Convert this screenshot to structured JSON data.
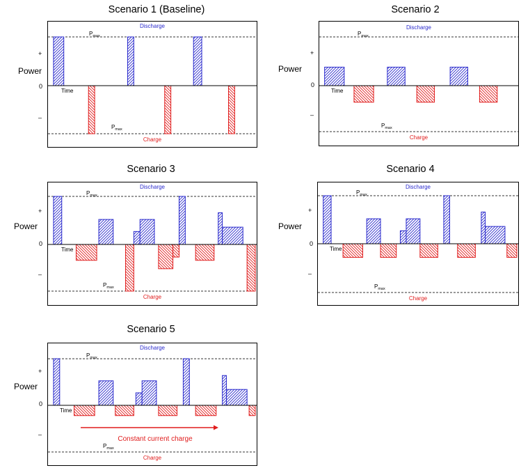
{
  "panels": [
    {
      "title": "Scenario 1 (Baseline)",
      "ylabel": "Power",
      "plus": "+",
      "zero": "0",
      "minus": "–",
      "time_label": "Time",
      "discharge_label": "Discharge",
      "charge_label": "Charge",
      "pmax_top": {
        "p": "P",
        "sub": "max"
      },
      "pmax_bottom": {
        "p": "P",
        "sub": "max"
      },
      "discharge_level": 1.0,
      "charge_level": 1.0,
      "discharge_pulses": [
        {
          "t0": 0.02,
          "t1": 0.07,
          "p": 1.0
        },
        {
          "t0": 0.38,
          "t1": 0.41,
          "p": 1.0
        },
        {
          "t0": 0.7,
          "t1": 0.74,
          "p": 1.0
        }
      ],
      "charge_pulses": [
        {
          "t0": 0.19,
          "t1": 0.22,
          "p": 1.0
        },
        {
          "t0": 0.56,
          "t1": 0.59,
          "p": 1.0
        },
        {
          "t0": 0.87,
          "t1": 0.9,
          "p": 1.0
        }
      ]
    },
    {
      "title": "Scenario 2",
      "ylabel": "Power",
      "plus": "+",
      "zero": "0",
      "minus": "–",
      "time_label": "Time",
      "discharge_label": "Discharge",
      "charge_label": "Charge",
      "pmax_top": {
        "p": "P",
        "sub": "max"
      },
      "pmax_bottom": {
        "p": "P",
        "sub": "max"
      },
      "discharge_level": 1.0,
      "charge_level": 1.0,
      "discharge_pulses": [
        {
          "t0": 0.02,
          "t1": 0.12,
          "p": 0.38
        },
        {
          "t0": 0.34,
          "t1": 0.43,
          "p": 0.38
        },
        {
          "t0": 0.66,
          "t1": 0.75,
          "p": 0.38
        }
      ],
      "charge_pulses": [
        {
          "t0": 0.17,
          "t1": 0.27,
          "p": 0.36
        },
        {
          "t0": 0.49,
          "t1": 0.58,
          "p": 0.36
        },
        {
          "t0": 0.81,
          "t1": 0.9,
          "p": 0.36
        }
      ]
    },
    {
      "title": "Scenario 3",
      "ylabel": "Power",
      "plus": "+",
      "zero": "0",
      "minus": "–",
      "time_label": "Time",
      "discharge_label": "Discharge",
      "charge_label": "Charge",
      "pmax_top": {
        "p": "P",
        "sub": "max"
      },
      "pmax_bottom": {
        "p": "P",
        "sub": "max"
      },
      "discharge_level": 1.0,
      "charge_level": 1.0,
      "discharge_pulses": [
        {
          "t0": 0.02,
          "t1": 0.06,
          "p": 1.0
        },
        {
          "t0": 0.24,
          "t1": 0.31,
          "p": 0.52
        },
        {
          "t0": 0.41,
          "t1": 0.44,
          "p": 0.27
        },
        {
          "t0": 0.44,
          "t1": 0.51,
          "p": 0.52
        },
        {
          "t0": 0.63,
          "t1": 0.66,
          "p": 1.0
        },
        {
          "t0": 0.82,
          "t1": 0.84,
          "p": 0.66
        },
        {
          "t0": 0.84,
          "t1": 0.94,
          "p": 0.36
        }
      ],
      "charge_pulses": [
        {
          "t0": 0.13,
          "t1": 0.23,
          "p": 0.34
        },
        {
          "t0": 0.37,
          "t1": 0.41,
          "p": 1.0
        },
        {
          "t0": 0.53,
          "t1": 0.6,
          "p": 0.52
        },
        {
          "t0": 0.6,
          "t1": 0.63,
          "p": 0.27
        },
        {
          "t0": 0.71,
          "t1": 0.8,
          "p": 0.34
        },
        {
          "t0": 0.96,
          "t1": 1.0,
          "p": 1.0
        }
      ]
    },
    {
      "title": "Scenario 4",
      "ylabel": "Power",
      "plus": "+",
      "zero": "0",
      "minus": "–",
      "time_label": "Time",
      "discharge_label": "Discharge",
      "charge_label": "Charge",
      "pmax_top": {
        "p": "P",
        "sub": "max"
      },
      "pmax_bottom": {
        "p": "P",
        "sub": "max"
      },
      "discharge_level": 1.0,
      "charge_level": 1.0,
      "discharge_pulses": [
        {
          "t0": 0.02,
          "t1": 0.06,
          "p": 1.0
        },
        {
          "t0": 0.24,
          "t1": 0.31,
          "p": 0.52
        },
        {
          "t0": 0.41,
          "t1": 0.44,
          "p": 0.27
        },
        {
          "t0": 0.44,
          "t1": 0.51,
          "p": 0.52
        },
        {
          "t0": 0.63,
          "t1": 0.66,
          "p": 1.0
        },
        {
          "t0": 0.82,
          "t1": 0.84,
          "p": 0.66
        },
        {
          "t0": 0.84,
          "t1": 0.94,
          "p": 0.36
        }
      ],
      "charge_pulses": [
        {
          "t0": 0.12,
          "t1": 0.22,
          "p": 0.28
        },
        {
          "t0": 0.31,
          "t1": 0.39,
          "p": 0.28
        },
        {
          "t0": 0.51,
          "t1": 0.6,
          "p": 0.28
        },
        {
          "t0": 0.7,
          "t1": 0.79,
          "p": 0.28
        },
        {
          "t0": 0.95,
          "t1": 1.0,
          "p": 0.28
        }
      ]
    },
    {
      "title": "Scenario 5",
      "ylabel": "Power",
      "plus": "+",
      "zero": "0",
      "minus": "–",
      "time_label": "Time",
      "discharge_label": "Discharge",
      "charge_label": "Charge",
      "pmax_top": {
        "p": "P",
        "sub": "max"
      },
      "pmax_bottom": {
        "p": "P",
        "sub": "max"
      },
      "arrow_label": "Constant current charge",
      "discharge_level": 0.97,
      "charge_level": 1.0,
      "discharge_pulses": [
        {
          "t0": 0.02,
          "t1": 0.05,
          "p": 0.97
        },
        {
          "t0": 0.24,
          "t1": 0.31,
          "p": 0.51
        },
        {
          "t0": 0.42,
          "t1": 0.45,
          "p": 0.26
        },
        {
          "t0": 0.45,
          "t1": 0.52,
          "p": 0.51
        },
        {
          "t0": 0.65,
          "t1": 0.68,
          "p": 0.97
        },
        {
          "t0": 0.84,
          "t1": 0.86,
          "p": 0.62
        },
        {
          "t0": 0.86,
          "t1": 0.96,
          "p": 0.33
        }
      ],
      "charge_pulses": [
        {
          "t0": 0.12,
          "t1": 0.22,
          "p": 0.22
        },
        {
          "t0": 0.32,
          "t1": 0.41,
          "p": 0.22
        },
        {
          "t0": 0.53,
          "t1": 0.62,
          "p": 0.22
        },
        {
          "t0": 0.71,
          "t1": 0.81,
          "p": 0.22
        },
        {
          "t0": 0.97,
          "t1": 1.0,
          "p": 0.22
        }
      ]
    }
  ],
  "colors": {
    "discharge": "#2a2acc",
    "charge": "#e01c1c",
    "axis": "#000000",
    "pmax_line": "#333333"
  }
}
